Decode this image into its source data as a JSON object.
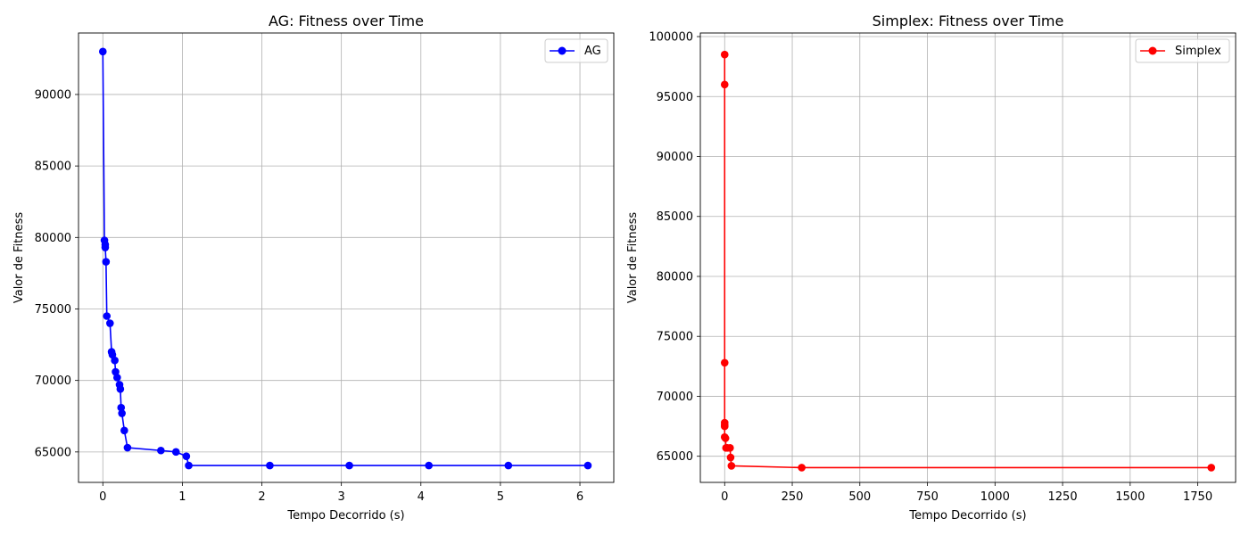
{
  "chart_data": [
    {
      "type": "line",
      "title": "AG: Fitness over Time",
      "xlabel": "Tempo Decorrido (s)",
      "ylabel": "Valor de Fitness",
      "xlim": [
        -0.306,
        6.426
      ],
      "ylim": [
        62870,
        94300
      ],
      "xticks": [
        0,
        1,
        2,
        3,
        4,
        5,
        6
      ],
      "yticks": [
        65000,
        70000,
        75000,
        80000,
        85000,
        90000
      ],
      "grid": true,
      "legend_position": "top-right",
      "series": [
        {
          "name": "AG",
          "color": "#0000ff",
          "marker": "circle",
          "x": [
            0.0,
            0.02,
            0.03,
            0.03,
            0.04,
            0.05,
            0.09,
            0.11,
            0.12,
            0.15,
            0.16,
            0.18,
            0.21,
            0.22,
            0.23,
            0.24,
            0.27,
            0.31,
            0.73,
            0.92,
            1.05,
            1.08,
            2.1,
            3.1,
            4.1,
            5.1,
            6.1
          ],
          "y": [
            93000,
            79800,
            79500,
            79300,
            78300,
            74500,
            74000,
            72000,
            71800,
            71400,
            70600,
            70200,
            69700,
            69400,
            68100,
            67700,
            66500,
            65300,
            65100,
            65000,
            64700,
            64050,
            64050,
            64050,
            64050,
            64050,
            64050
          ]
        }
      ]
    },
    {
      "type": "line",
      "title": "Simplex: Fitness over Time",
      "xlabel": "Tempo Decorrido (s)",
      "ylabel": "Valor de Fitness",
      "xlim": [
        -90,
        1890
      ],
      "ylim": [
        62820,
        100300
      ],
      "xticks": [
        0,
        250,
        500,
        750,
        1000,
        1250,
        1500,
        1750
      ],
      "yticks": [
        65000,
        70000,
        75000,
        80000,
        85000,
        90000,
        95000,
        100000
      ],
      "grid": true,
      "legend_position": "top-right",
      "series": [
        {
          "name": "Simplex",
          "color": "#ff0000",
          "marker": "circle",
          "x": [
            0,
            0,
            0,
            0,
            0,
            0,
            0,
            3,
            5,
            10,
            20,
            22,
            25,
            285,
            1800
          ],
          "y": [
            98500,
            96000,
            72800,
            67800,
            67600,
            67500,
            66600,
            66500,
            65700,
            65700,
            65700,
            64900,
            64200,
            64050,
            64050
          ]
        }
      ]
    }
  ]
}
